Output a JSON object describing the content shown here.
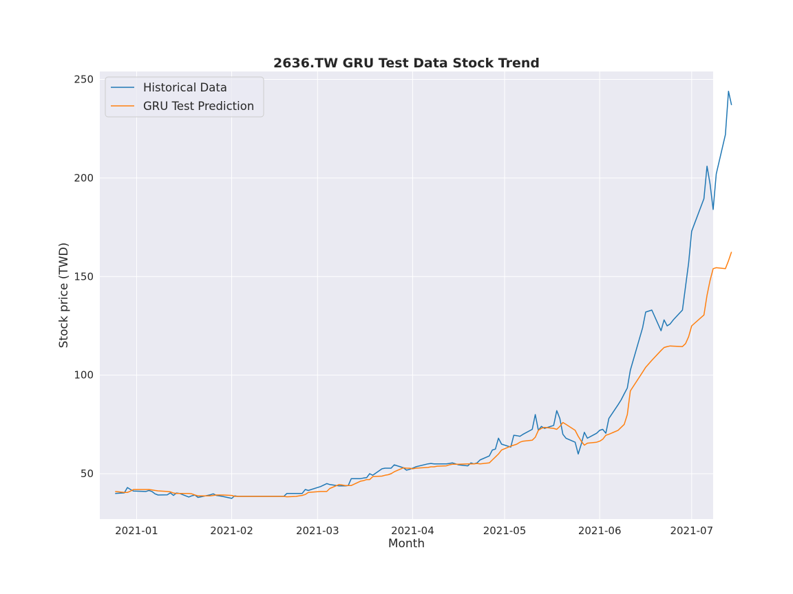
{
  "chart_data": {
    "type": "line",
    "title": "2636.TW  GRU Test Data Stock Trend",
    "xlabel": "Month",
    "ylabel": "Stock price (TWD)",
    "xlim": [
      "2020-12-20",
      "2021-07-08"
    ],
    "ylim": [
      27,
      254
    ],
    "x_ticks": [
      "2021-01-01",
      "2021-02-01",
      "2021-03-01",
      "2021-04-01",
      "2021-05-01",
      "2021-06-01",
      "2021-07-01"
    ],
    "x_tick_labels": [
      "2021-01",
      "2021-02",
      "2021-03",
      "2021-04",
      "2021-05",
      "2021-06",
      "2021-07"
    ],
    "y_ticks": [
      50,
      100,
      150,
      200,
      250
    ],
    "y_tick_labels": [
      "50",
      "100",
      "150",
      "200",
      "250"
    ],
    "grid": true,
    "legend_position": "top-left",
    "background": "#eaeaf2",
    "series": [
      {
        "name": "Historical Data",
        "color": "#1f77b4",
        "points": [
          [
            "2020-12-25",
            40.0
          ],
          [
            "2020-12-28",
            40.3
          ],
          [
            "2020-12-29",
            43.0
          ],
          [
            "2020-12-30",
            42.0
          ],
          [
            "2020-12-31",
            41.2
          ],
          [
            "2021-01-04",
            41.0
          ],
          [
            "2021-01-05",
            41.5
          ],
          [
            "2021-01-06",
            41.0
          ],
          [
            "2021-01-07",
            39.8
          ],
          [
            "2021-01-08",
            39.2
          ],
          [
            "2021-01-11",
            39.3
          ],
          [
            "2021-01-12",
            40.3
          ],
          [
            "2021-01-13",
            39.0
          ],
          [
            "2021-01-14",
            40.2
          ],
          [
            "2021-01-15",
            40.0
          ],
          [
            "2021-01-18",
            38.2
          ],
          [
            "2021-01-19",
            38.8
          ],
          [
            "2021-01-20",
            39.2
          ],
          [
            "2021-01-21",
            38.0
          ],
          [
            "2021-01-22",
            38.3
          ],
          [
            "2021-01-25",
            39.3
          ],
          [
            "2021-01-26",
            39.8
          ],
          [
            "2021-01-27",
            39.0
          ],
          [
            "2021-01-28",
            38.8
          ],
          [
            "2021-01-29",
            38.5
          ],
          [
            "2021-02-01",
            37.5
          ],
          [
            "2021-02-02",
            38.8
          ],
          [
            "2021-02-03",
            38.5
          ],
          [
            "2021-02-04",
            38.5
          ],
          [
            "2021-02-05",
            38.5
          ],
          [
            "2021-02-17",
            38.5
          ],
          [
            "2021-02-18",
            38.5
          ],
          [
            "2021-02-19",
            40.0
          ],
          [
            "2021-02-22",
            40.0
          ],
          [
            "2021-02-23",
            40.0
          ],
          [
            "2021-02-24",
            40.0
          ],
          [
            "2021-02-25",
            42.0
          ],
          [
            "2021-02-26",
            41.5
          ],
          [
            "2021-03-02",
            43.5
          ],
          [
            "2021-03-04",
            45.0
          ],
          [
            "2021-03-05",
            44.5
          ],
          [
            "2021-03-08",
            43.8
          ],
          [
            "2021-03-09",
            43.8
          ],
          [
            "2021-03-10",
            43.8
          ],
          [
            "2021-03-11",
            44.0
          ],
          [
            "2021-03-12",
            47.5
          ],
          [
            "2021-03-15",
            47.5
          ],
          [
            "2021-03-16",
            47.8
          ],
          [
            "2021-03-17",
            48.0
          ],
          [
            "2021-03-18",
            50.0
          ],
          [
            "2021-03-19",
            49.2
          ],
          [
            "2021-03-22",
            52.5
          ],
          [
            "2021-03-23",
            52.8
          ],
          [
            "2021-03-24",
            52.8
          ],
          [
            "2021-03-25",
            52.8
          ],
          [
            "2021-03-26",
            54.5
          ],
          [
            "2021-03-29",
            53.0
          ],
          [
            "2021-03-30",
            51.8
          ],
          [
            "2021-03-31",
            52.2
          ],
          [
            "2021-04-01",
            52.8
          ],
          [
            "2021-04-02",
            53.5
          ],
          [
            "2021-04-06",
            55.0
          ],
          [
            "2021-04-07",
            55.2
          ],
          [
            "2021-04-08",
            55.0
          ],
          [
            "2021-04-09",
            55.0
          ],
          [
            "2021-04-12",
            55.0
          ],
          [
            "2021-04-13",
            55.2
          ],
          [
            "2021-04-14",
            55.5
          ],
          [
            "2021-04-15",
            55.0
          ],
          [
            "2021-04-16",
            54.5
          ],
          [
            "2021-04-19",
            54.0
          ],
          [
            "2021-04-20",
            55.5
          ],
          [
            "2021-04-21",
            55.0
          ],
          [
            "2021-04-22",
            55.5
          ],
          [
            "2021-04-23",
            57.0
          ],
          [
            "2021-04-26",
            59.0
          ],
          [
            "2021-04-27",
            62.0
          ],
          [
            "2021-04-28",
            62.5
          ],
          [
            "2021-04-29",
            68.0
          ],
          [
            "2021-04-30",
            65.0
          ],
          [
            "2021-05-03",
            63.5
          ],
          [
            "2021-05-04",
            69.5
          ],
          [
            "2021-05-05",
            69.3
          ],
          [
            "2021-05-06",
            69.0
          ],
          [
            "2021-05-07",
            70.0
          ],
          [
            "2021-05-10",
            72.5
          ],
          [
            "2021-05-11",
            80.0
          ],
          [
            "2021-05-12",
            72.0
          ],
          [
            "2021-05-13",
            74.0
          ],
          [
            "2021-05-14",
            73.0
          ],
          [
            "2021-05-17",
            74.5
          ],
          [
            "2021-05-18",
            82.0
          ],
          [
            "2021-05-19",
            78.0
          ],
          [
            "2021-05-20",
            70.0
          ],
          [
            "2021-05-21",
            68.0
          ],
          [
            "2021-05-24",
            66.0
          ],
          [
            "2021-05-25",
            60.0
          ],
          [
            "2021-05-26",
            65.0
          ],
          [
            "2021-05-27",
            71.0
          ],
          [
            "2021-05-28",
            68.0
          ],
          [
            "2021-05-31",
            70.5
          ],
          [
            "2021-06-01",
            72.0
          ],
          [
            "2021-06-02",
            72.5
          ],
          [
            "2021-06-03",
            70.5
          ],
          [
            "2021-06-04",
            78.0
          ],
          [
            "2021-06-07",
            85.0
          ],
          [
            "2021-06-08",
            87.5
          ],
          [
            "2021-06-09",
            90.5
          ],
          [
            "2021-06-10",
            93.5
          ],
          [
            "2021-06-11",
            102.5
          ],
          [
            "2021-06-15",
            124.0
          ],
          [
            "2021-06-16",
            132.0
          ],
          [
            "2021-06-18",
            133.0
          ],
          [
            "2021-06-21",
            122.5
          ],
          [
            "2021-06-22",
            128.0
          ],
          [
            "2021-06-23",
            125.0
          ],
          [
            "2021-06-24",
            126.0
          ],
          [
            "2021-06-25",
            128.0
          ],
          [
            "2021-06-28",
            133.0
          ],
          [
            "2021-06-29",
            145.0
          ],
          [
            "2021-06-30",
            157.0
          ],
          [
            "2021-07-01",
            173.0
          ],
          [
            "2021-07-05",
            189.5
          ],
          [
            "2021-07-06",
            206.0
          ],
          [
            "2021-07-07",
            197.0
          ],
          [
            "2021-07-08",
            184.0
          ],
          [
            "2021-07-09",
            202.0
          ],
          [
            "2021-07-12",
            222.0
          ],
          [
            "2021-07-13",
            244.0
          ],
          [
            "2021-07-14",
            237.0
          ]
        ]
      },
      {
        "name": "GRU Test Prediction",
        "color": "#ff7f0e",
        "points": [
          [
            "2020-12-25",
            41.0
          ],
          [
            "2020-12-28",
            40.5
          ],
          [
            "2020-12-29",
            40.5
          ],
          [
            "2020-12-30",
            41.2
          ],
          [
            "2020-12-31",
            42.0
          ],
          [
            "2021-01-04",
            42.0
          ],
          [
            "2021-01-05",
            42.0
          ],
          [
            "2021-01-06",
            41.8
          ],
          [
            "2021-01-07",
            41.5
          ],
          [
            "2021-01-08",
            41.3
          ],
          [
            "2021-01-11",
            41.0
          ],
          [
            "2021-01-12",
            40.8
          ],
          [
            "2021-01-13",
            40.2
          ],
          [
            "2021-01-14",
            40.0
          ],
          [
            "2021-01-15",
            40.0
          ],
          [
            "2021-01-18",
            40.0
          ],
          [
            "2021-01-19",
            39.8
          ],
          [
            "2021-01-20",
            39.2
          ],
          [
            "2021-01-21",
            38.8
          ],
          [
            "2021-01-22",
            38.8
          ],
          [
            "2021-01-25",
            38.8
          ],
          [
            "2021-01-26",
            39.0
          ],
          [
            "2021-01-27",
            39.2
          ],
          [
            "2021-01-28",
            39.2
          ],
          [
            "2021-01-29",
            39.2
          ],
          [
            "2021-02-01",
            39.0
          ],
          [
            "2021-02-02",
            38.5
          ],
          [
            "2021-02-03",
            38.5
          ],
          [
            "2021-02-04",
            38.5
          ],
          [
            "2021-02-05",
            38.5
          ],
          [
            "2021-02-17",
            38.5
          ],
          [
            "2021-02-18",
            38.5
          ],
          [
            "2021-02-19",
            38.3
          ],
          [
            "2021-02-22",
            38.5
          ],
          [
            "2021-02-23",
            38.8
          ],
          [
            "2021-02-24",
            39.0
          ],
          [
            "2021-02-25",
            39.5
          ],
          [
            "2021-02-26",
            40.5
          ],
          [
            "2021-03-02",
            41.0
          ],
          [
            "2021-03-04",
            41.0
          ],
          [
            "2021-03-05",
            42.5
          ],
          [
            "2021-03-08",
            44.5
          ],
          [
            "2021-03-09",
            44.3
          ],
          [
            "2021-03-10",
            44.0
          ],
          [
            "2021-03-11",
            44.0
          ],
          [
            "2021-03-12",
            44.0
          ],
          [
            "2021-03-15",
            46.2
          ],
          [
            "2021-03-16",
            46.5
          ],
          [
            "2021-03-17",
            47.0
          ],
          [
            "2021-03-18",
            47.0
          ],
          [
            "2021-03-19",
            48.5
          ],
          [
            "2021-03-22",
            48.8
          ],
          [
            "2021-03-23",
            49.2
          ],
          [
            "2021-03-24",
            49.5
          ],
          [
            "2021-03-25",
            50.0
          ],
          [
            "2021-03-26",
            51.0
          ],
          [
            "2021-03-29",
            53.0
          ],
          [
            "2021-03-30",
            52.8
          ],
          [
            "2021-03-31",
            52.8
          ],
          [
            "2021-04-01",
            52.5
          ],
          [
            "2021-04-02",
            52.8
          ],
          [
            "2021-04-06",
            53.2
          ],
          [
            "2021-04-07",
            53.5
          ],
          [
            "2021-04-08",
            53.5
          ],
          [
            "2021-04-09",
            53.8
          ],
          [
            "2021-04-12",
            54.0
          ],
          [
            "2021-04-13",
            54.5
          ],
          [
            "2021-04-14",
            54.8
          ],
          [
            "2021-04-15",
            54.8
          ],
          [
            "2021-04-16",
            54.8
          ],
          [
            "2021-04-19",
            55.0
          ],
          [
            "2021-04-20",
            55.0
          ],
          [
            "2021-04-21",
            55.0
          ],
          [
            "2021-04-22",
            55.2
          ],
          [
            "2021-04-23",
            55.0
          ],
          [
            "2021-04-26",
            55.5
          ],
          [
            "2021-04-27",
            57.0
          ],
          [
            "2021-04-28",
            58.5
          ],
          [
            "2021-04-29",
            60.0
          ],
          [
            "2021-04-30",
            62.0
          ],
          [
            "2021-05-03",
            64.0
          ],
          [
            "2021-05-04",
            64.5
          ],
          [
            "2021-05-05",
            65.0
          ],
          [
            "2021-05-06",
            66.0
          ],
          [
            "2021-05-07",
            66.5
          ],
          [
            "2021-05-10",
            67.0
          ],
          [
            "2021-05-11",
            68.5
          ],
          [
            "2021-05-12",
            72.0
          ],
          [
            "2021-05-13",
            73.0
          ],
          [
            "2021-05-14",
            73.5
          ],
          [
            "2021-05-17",
            73.0
          ],
          [
            "2021-05-18",
            72.5
          ],
          [
            "2021-05-19",
            74.0
          ],
          [
            "2021-05-20",
            76.0
          ],
          [
            "2021-05-21",
            75.0
          ],
          [
            "2021-05-24",
            72.0
          ],
          [
            "2021-05-25",
            69.0
          ],
          [
            "2021-05-26",
            66.5
          ],
          [
            "2021-05-27",
            64.5
          ],
          [
            "2021-05-28",
            65.5
          ],
          [
            "2021-05-31",
            66.0
          ],
          [
            "2021-06-01",
            66.5
          ],
          [
            "2021-06-02",
            67.5
          ],
          [
            "2021-06-03",
            69.5
          ],
          [
            "2021-06-04",
            70.0
          ],
          [
            "2021-06-07",
            72.0
          ],
          [
            "2021-06-08",
            73.5
          ],
          [
            "2021-06-09",
            75.0
          ],
          [
            "2021-06-10",
            80.0
          ],
          [
            "2021-06-11",
            92.0
          ],
          [
            "2021-06-15",
            101.5
          ],
          [
            "2021-06-16",
            104.0
          ],
          [
            "2021-06-18",
            107.5
          ],
          [
            "2021-06-21",
            112.5
          ],
          [
            "2021-06-22",
            114.0
          ],
          [
            "2021-06-23",
            114.5
          ],
          [
            "2021-06-24",
            114.8
          ],
          [
            "2021-06-25",
            114.7
          ],
          [
            "2021-06-28",
            114.5
          ],
          [
            "2021-06-29",
            116.0
          ],
          [
            "2021-06-30",
            119.5
          ],
          [
            "2021-07-01",
            125.0
          ],
          [
            "2021-07-05",
            130.5
          ],
          [
            "2021-07-06",
            140.5
          ],
          [
            "2021-07-07",
            148.0
          ],
          [
            "2021-07-08",
            154.0
          ],
          [
            "2021-07-09",
            154.5
          ],
          [
            "2021-07-12",
            154.0
          ],
          [
            "2021-07-13",
            158.0
          ],
          [
            "2021-07-14",
            162.5
          ]
        ]
      }
    ]
  }
}
